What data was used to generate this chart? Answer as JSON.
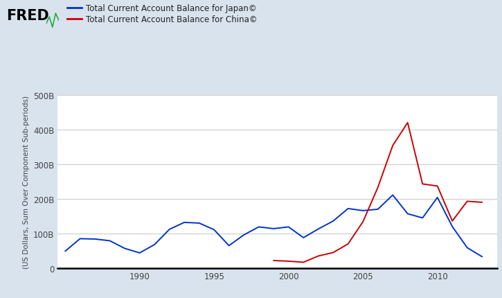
{
  "japan_years": [
    1985,
    1986,
    1987,
    1988,
    1989,
    1990,
    1991,
    1992,
    1993,
    1994,
    1995,
    1996,
    1997,
    1998,
    1999,
    2000,
    2001,
    2002,
    2003,
    2004,
    2005,
    2006,
    2007,
    2008,
    2009,
    2010,
    2011,
    2012,
    2013
  ],
  "japan_values": [
    49,
    85,
    84,
    79,
    57,
    44,
    68,
    112,
    132,
    130,
    111,
    65,
    96,
    119,
    114,
    119,
    88,
    113,
    136,
    172,
    166,
    170,
    211,
    157,
    145,
    204,
    120,
    59,
    33
  ],
  "china_years": [
    1999,
    2000,
    2001,
    2002,
    2003,
    2004,
    2005,
    2006,
    2007,
    2008,
    2009,
    2010,
    2011,
    2012,
    2013
  ],
  "china_values": [
    22,
    20,
    17,
    35,
    45,
    70,
    134,
    233,
    354,
    420,
    243,
    237,
    136,
    193,
    190
  ],
  "japan_color": "#0033cc",
  "china_color": "#cc0000",
  "background_color": "#d8e3ee",
  "plot_background": "#ffffff",
  "ylabel": "(US Dollars, Sum Over Component Sub-periods)",
  "ytick_labels": [
    "0",
    "100B",
    "200B",
    "300B",
    "400B",
    "500B"
  ],
  "ytick_values": [
    0,
    100,
    200,
    300,
    400,
    500
  ],
  "xtick_values": [
    1990,
    1995,
    2000,
    2005,
    2010
  ],
  "xlim": [
    1984.5,
    2014
  ],
  "ylim": [
    0,
    500
  ],
  "legend_japan": "Total Current Account Balance for Japan©",
  "legend_china": "Total Current Account Balance for China©",
  "fred_text": "FRED"
}
